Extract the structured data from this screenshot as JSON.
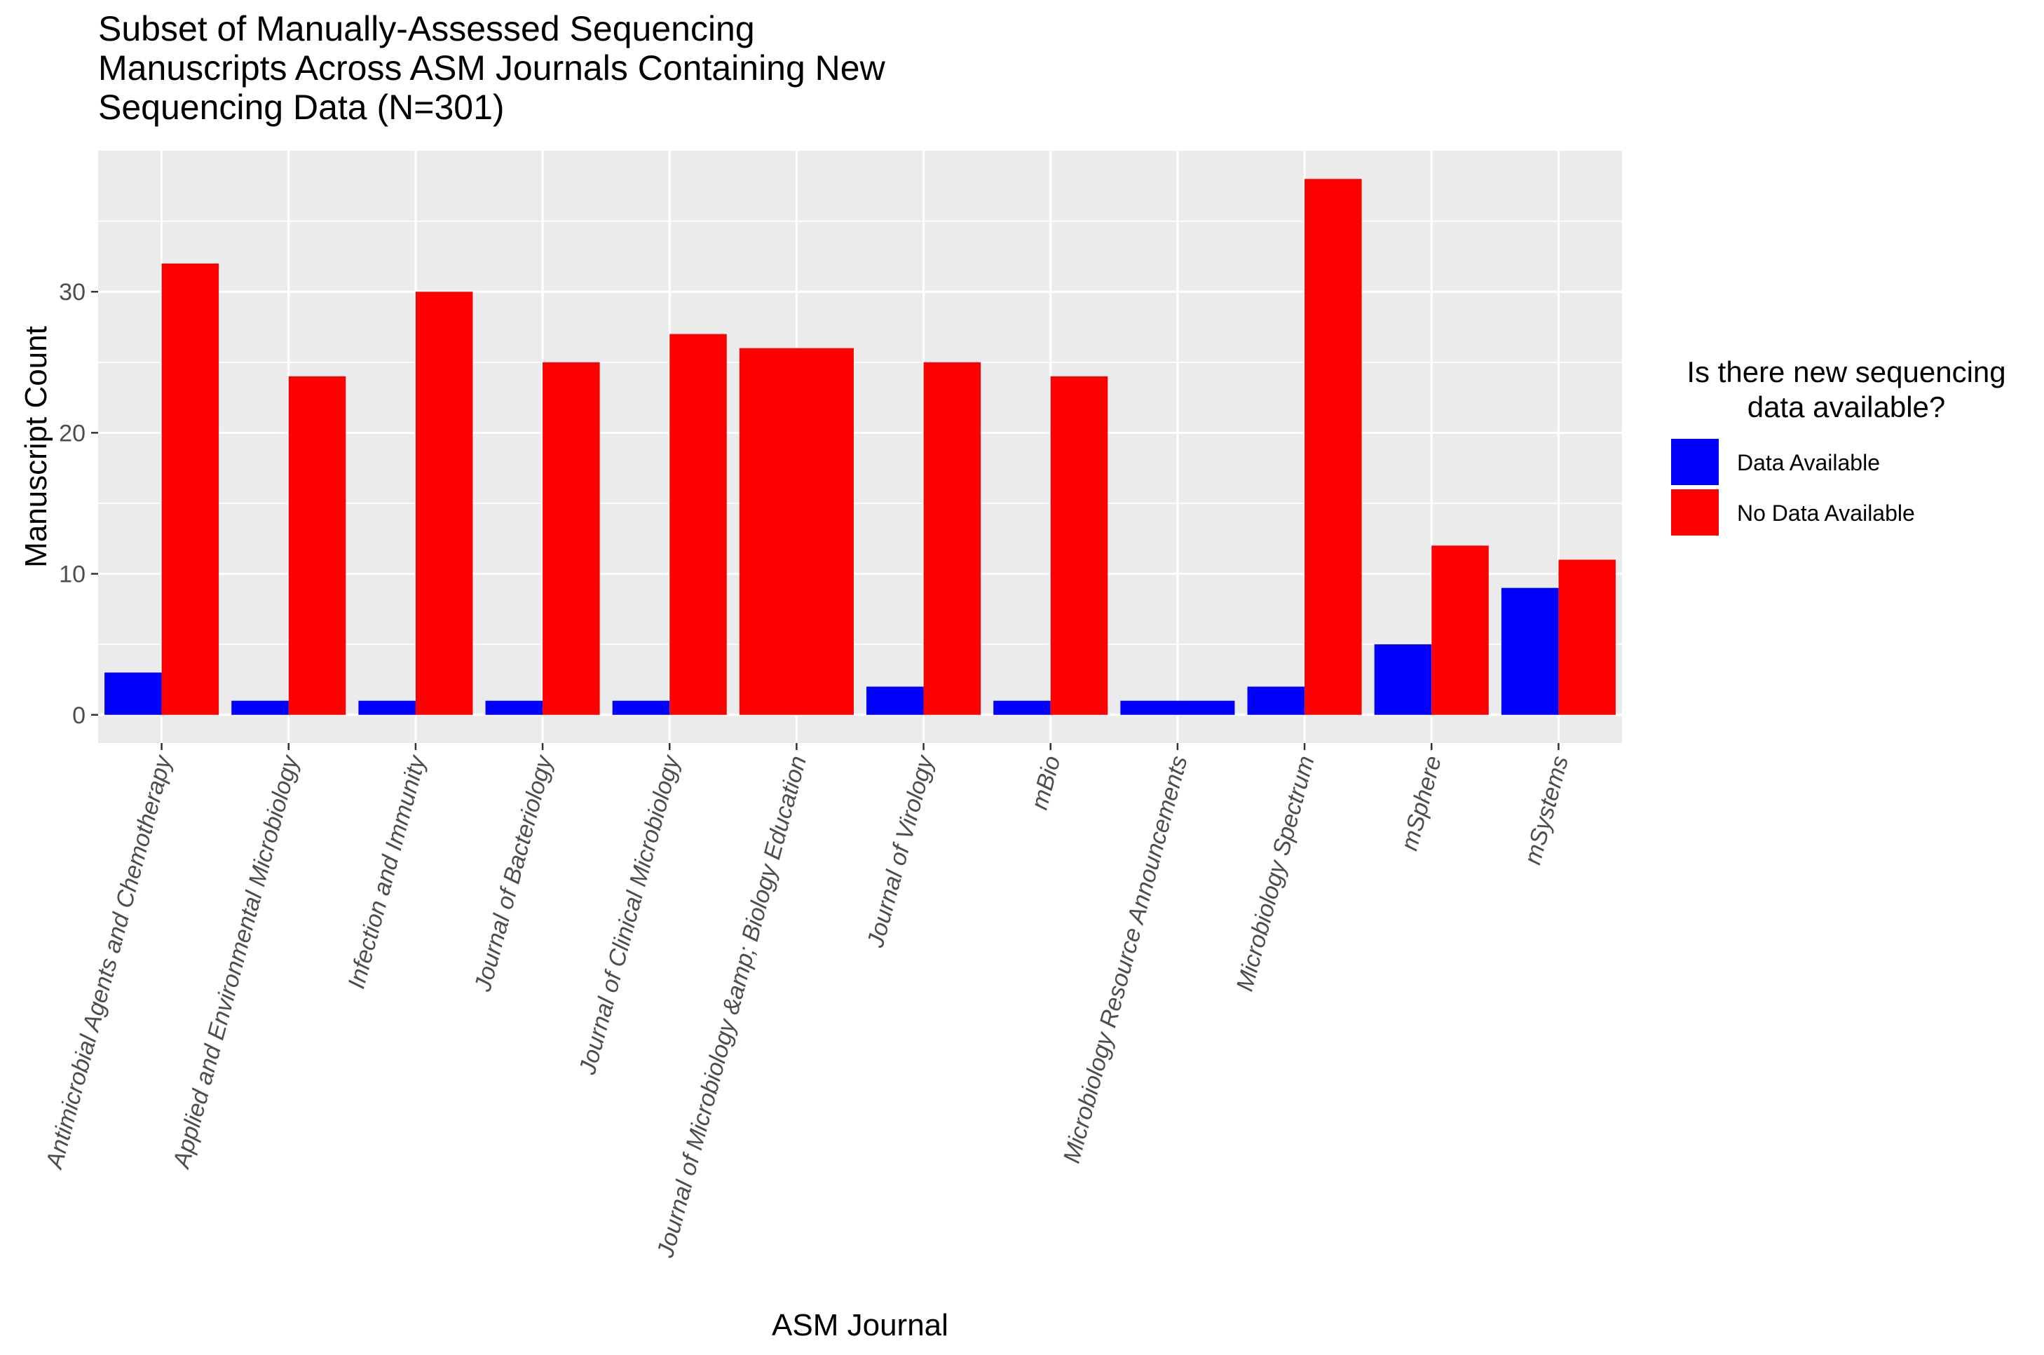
{
  "chart_data": {
    "type": "bar",
    "title_lines": [
      "Subset of Manually-Assessed Sequencing",
      "Manuscripts Across ASM Journals Containing New",
      "Sequencing Data (N=301)"
    ],
    "xlabel": "ASM Journal",
    "ylabel": "Manuscript Count",
    "ylim": [
      -2,
      40
    ],
    "yticks": [
      0,
      10,
      20,
      30
    ],
    "grid": true,
    "legend": {
      "title_lines": [
        "Is there new sequencing",
        "data available?"
      ],
      "placement": "right"
    },
    "categories": [
      "Antimicrobial Agents and Chemotherapy",
      "Applied and Environmental Microbiology",
      "Infection and Immunity",
      "Journal of Bacteriology",
      "Journal of Clinical Microbiology",
      "Journal of Microbiology &amp; Biology Education",
      "Journal of Virology",
      "mBio",
      "Microbiology Resource Announcements",
      "Microbiology Spectrum",
      "mSphere",
      "mSystems"
    ],
    "series": [
      {
        "name": "Data Available",
        "color": "#0000ff",
        "values": [
          3,
          1,
          1,
          1,
          1,
          null,
          2,
          1,
          1,
          2,
          5,
          9
        ]
      },
      {
        "name": "No Data Available",
        "color": "#ff0000",
        "values": [
          32,
          24,
          30,
          25,
          27,
          26,
          25,
          24,
          null,
          38,
          12,
          11
        ]
      }
    ]
  }
}
